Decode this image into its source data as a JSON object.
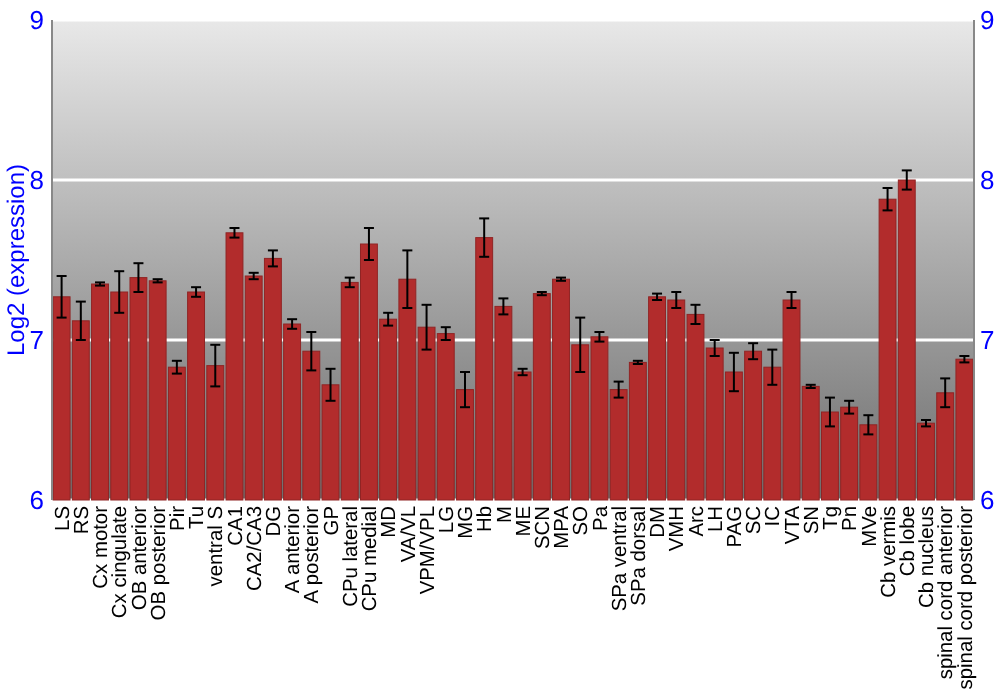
{
  "chart_data": {
    "type": "bar",
    "ylabel": "Log2 (expression)",
    "categories": [
      "LS",
      "RS",
      "Cx motor",
      "Cx cingulate",
      "OB anterior",
      "OB posterior",
      "Pir",
      "Tu",
      "ventral S",
      "CA1",
      "CA2/CA3",
      "DG",
      "A anterior",
      "A posterior",
      "GP",
      "CPu lateral",
      "CPu medial",
      "MD",
      "VA/VL",
      "VPM/VPL",
      "LG",
      "MG",
      "Hb",
      "M",
      "ME",
      "SCN",
      "MPA",
      "SO",
      "Pa",
      "SPa ventral",
      "SPa dorsal",
      "DM",
      "VMH",
      "Arc",
      "LH",
      "PAG",
      "SC",
      "IC",
      "VTA",
      "SN",
      "Tg",
      "Pn",
      "MVe",
      "Cb vermis",
      "Cb lobe",
      "Cb nucleus",
      "spinal cord anterior",
      "spinal cord posterior"
    ],
    "values": [
      7.27,
      7.12,
      7.35,
      7.3,
      7.39,
      7.37,
      6.83,
      7.3,
      6.84,
      7.67,
      7.4,
      7.51,
      7.1,
      6.93,
      6.72,
      7.36,
      7.6,
      7.13,
      7.38,
      7.08,
      7.04,
      6.69,
      7.64,
      7.21,
      6.8,
      7.29,
      7.38,
      6.97,
      7.02,
      6.69,
      6.86,
      7.27,
      7.25,
      7.16,
      6.95,
      6.8,
      6.93,
      6.83,
      7.25,
      6.71,
      6.55,
      6.58,
      6.47,
      7.88,
      8.0,
      6.48,
      6.67,
      6.88
    ],
    "errors": [
      0.13,
      0.12,
      0.01,
      0.13,
      0.09,
      0.01,
      0.04,
      0.03,
      0.13,
      0.03,
      0.02,
      0.05,
      0.03,
      0.12,
      0.1,
      0.03,
      0.1,
      0.04,
      0.18,
      0.14,
      0.04,
      0.11,
      0.12,
      0.05,
      0.02,
      0.01,
      0.01,
      0.17,
      0.03,
      0.05,
      0.01,
      0.02,
      0.05,
      0.06,
      0.05,
      0.12,
      0.05,
      0.11,
      0.05,
      0.01,
      0.09,
      0.04,
      0.06,
      0.07,
      0.06,
      0.02,
      0.09,
      0.02
    ],
    "color": "#b22c2c",
    "ylim": [
      6,
      9
    ],
    "yticks": [
      6,
      7,
      8,
      9
    ],
    "y2lim": [
      6,
      9
    ],
    "y2ticks": [
      6,
      7,
      8,
      9
    ],
    "grid": "y"
  }
}
